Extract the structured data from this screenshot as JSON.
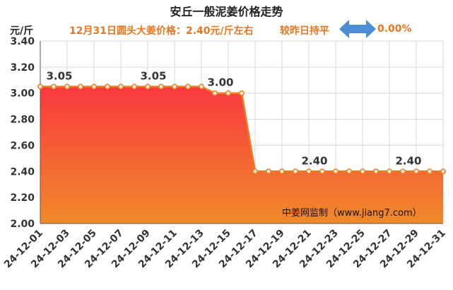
{
  "chart_data": {
    "type": "area",
    "title": "安丘一般泥姜价格走势",
    "ylabel": "元/斤",
    "ylim": [
      2.0,
      3.4
    ],
    "yticks": [
      2.0,
      2.2,
      2.4,
      2.6,
      2.8,
      3.0,
      3.2,
      3.4
    ],
    "grid": true,
    "x": [
      "24-12-01",
      "24-12-02",
      "24-12-03",
      "24-12-04",
      "24-12-05",
      "24-12-06",
      "24-12-07",
      "24-12-08",
      "24-12-09",
      "24-12-10",
      "24-12-11",
      "24-12-12",
      "24-12-13",
      "24-12-14",
      "24-12-15",
      "24-12-16",
      "24-12-17",
      "24-12-18",
      "24-12-19",
      "24-12-20",
      "24-12-21",
      "24-12-22",
      "24-12-23",
      "24-12-24",
      "24-12-25",
      "24-12-26",
      "24-12-27",
      "24-12-28",
      "24-12-29",
      "24-12-30",
      "24-12-31"
    ],
    "xtick_labels": [
      "24-12-01",
      "24-12-03",
      "24-12-05",
      "24-12-07",
      "24-12-09",
      "24-12-11",
      "24-12-13",
      "24-12-15",
      "24-12-17",
      "24-12-19",
      "24-12-21",
      "24-12-23",
      "24-12-25",
      "24-12-27",
      "24-12-29",
      "24-12-31"
    ],
    "values": [
      3.05,
      3.05,
      3.05,
      3.05,
      3.05,
      3.05,
      3.05,
      3.05,
      3.05,
      3.05,
      3.05,
      3.05,
      3.05,
      3.0,
      3.0,
      3.0,
      2.4,
      2.4,
      2.4,
      2.4,
      2.4,
      2.4,
      2.4,
      2.4,
      2.4,
      2.4,
      2.4,
      2.4,
      2.4,
      2.4,
      2.4
    ],
    "data_labels": [
      {
        "index": 1,
        "text": "3.05"
      },
      {
        "index": 8,
        "text": "3.05"
      },
      {
        "index": 13,
        "text": "3.00"
      },
      {
        "index": 20,
        "text": "2.40"
      },
      {
        "index": 27,
        "text": "2.40"
      }
    ],
    "watermark": "中姜网监制（www.jiang7.com）",
    "colors": {
      "fill_top": "#f9393f",
      "fill_bottom": "#f08a2a",
      "line": "#ef7a1f",
      "point_fill": "#fde9d4",
      "grid": "#d9d9d9"
    }
  },
  "header": {
    "unit": "元/斤",
    "price_note": "12月31日圆头大姜价格：2.40元/斤左右",
    "compare": "较昨日持平",
    "change_pct": "0.00%",
    "arrow_icon": "double-arrow-icon",
    "arrow_color": "#4a8fd6"
  }
}
